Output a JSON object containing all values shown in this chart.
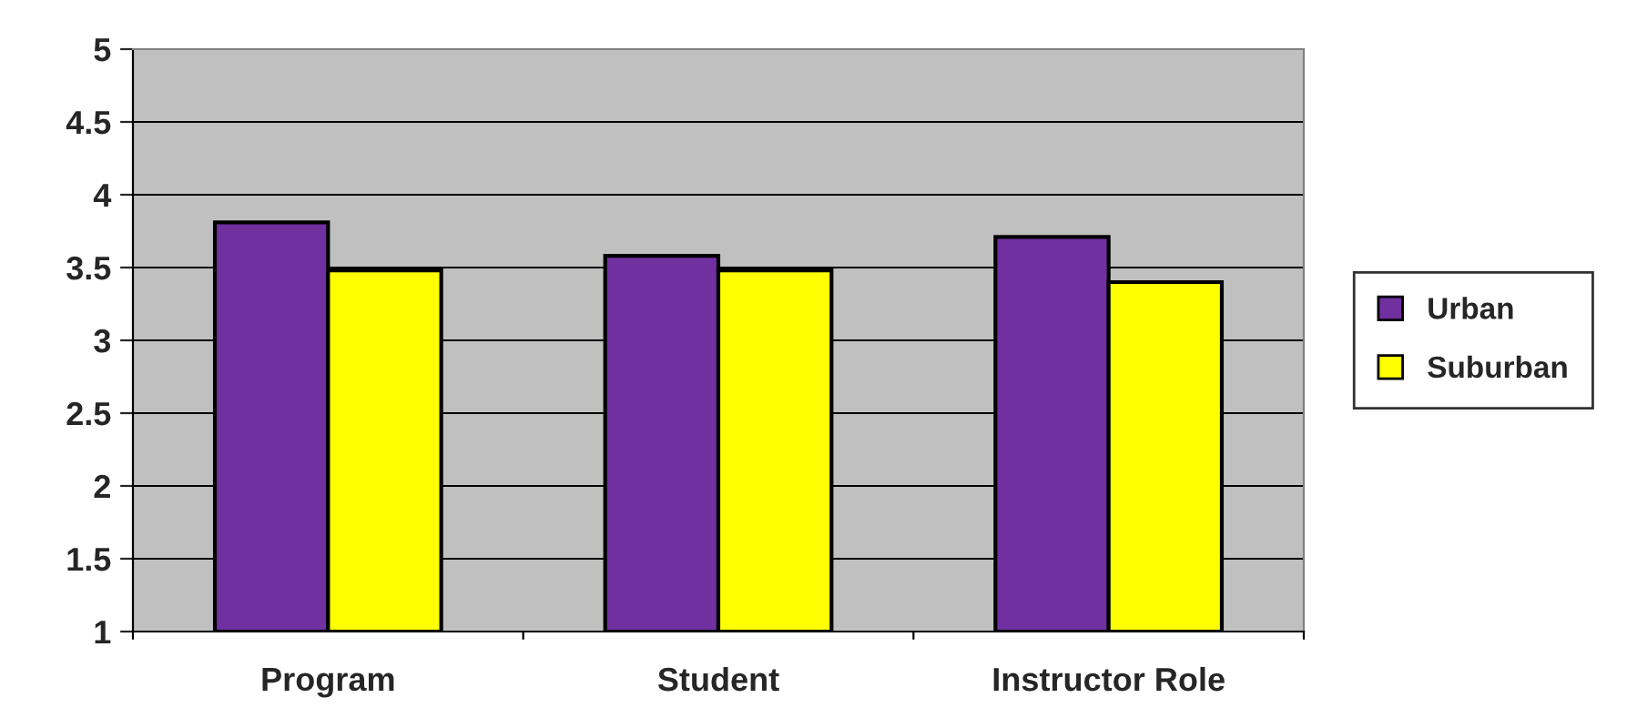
{
  "chart_data": {
    "type": "bar",
    "categories": [
      "Program",
      "Student",
      "Instructor Role"
    ],
    "series": [
      {
        "name": "Urban",
        "color": "#7030a0",
        "values": [
          3.81,
          3.58,
          3.71
        ]
      },
      {
        "name": "Suburban",
        "color": "#ffff00",
        "values": [
          3.48,
          3.48,
          3.4
        ]
      }
    ],
    "ylim": [
      1,
      5
    ],
    "yticks": [
      1,
      1.5,
      2,
      2.5,
      3,
      3.5,
      4,
      4.5,
      5
    ],
    "grid": "y",
    "legend": "right"
  }
}
